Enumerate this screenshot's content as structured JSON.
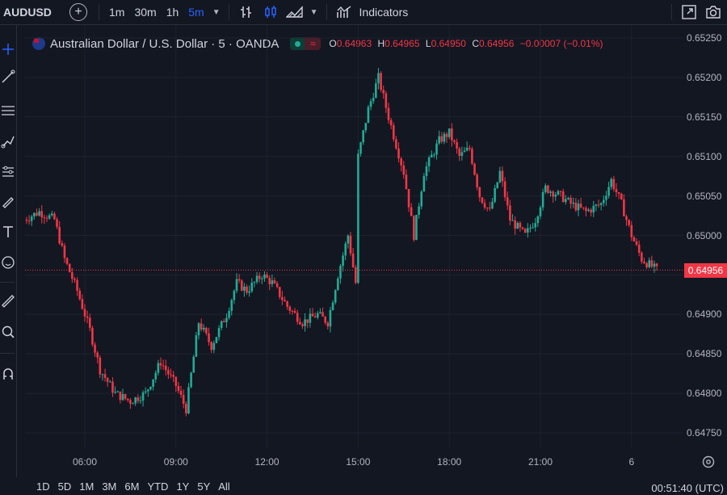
{
  "topbar": {
    "symbol": "AUDUSD",
    "timeframes": [
      "1m",
      "30m",
      "1h",
      "5m"
    ],
    "active_timeframe": "5m",
    "indicators_label": "Indicators",
    "icons": [
      "add-symbol-icon",
      "bar-style-icon",
      "candles-icon",
      "area-chart-icon",
      "indicators-icon",
      "fullscreen-icon",
      "snapshot-icon"
    ]
  },
  "legend": {
    "title": "Australian Dollar / U.S. Dollar · 5 · OANDA",
    "o_key": "O",
    "o_val": "0.64963",
    "h_key": "H",
    "h_val": "0.64965",
    "l_key": "L",
    "l_val": "0.64950",
    "c_key": "C",
    "c_val": "0.64956",
    "change": "−0.00007 (−0.01%)",
    "market_status": "≈"
  },
  "price_axis": {
    "labels": [
      "0.65250",
      "0.65200",
      "0.65150",
      "0.65100",
      "0.65050",
      "0.65000",
      "0.64950",
      "0.64900",
      "0.64850",
      "0.64800",
      "0.64750"
    ],
    "last_price": "0.64956"
  },
  "time_axis": {
    "labels": [
      "06:00",
      "09:00",
      "12:00",
      "15:00",
      "18:00",
      "21:00",
      "6"
    ]
  },
  "bottombar": {
    "ranges": [
      "1D",
      "5D",
      "1M",
      "3M",
      "6M",
      "YTD",
      "1Y",
      "5Y",
      "All"
    ],
    "clock": "00:51:40 (UTC)"
  },
  "colors": {
    "up": "#22ab94",
    "down": "#f23645",
    "background": "#131722",
    "grid": "#1e222d",
    "accent": "#2962ff"
  },
  "chart_data": {
    "type": "candlestick",
    "symbol": "AUDUSD",
    "interval": "5m",
    "ylim": [
      0.6474,
      0.6526
    ],
    "x_ticks": [
      "06:00",
      "09:00",
      "12:00",
      "15:00",
      "18:00",
      "21:00",
      "6"
    ],
    "close_path": [
      [
        "04:00",
        0.6502
      ],
      [
        "04:30",
        0.6503
      ],
      [
        "05:00",
        0.6502
      ],
      [
        "05:20",
        0.6497
      ],
      [
        "05:45",
        0.6493
      ],
      [
        "06:10",
        0.6488
      ],
      [
        "06:30",
        0.6483
      ],
      [
        "07:00",
        0.648
      ],
      [
        "07:30",
        0.6479
      ],
      [
        "08:00",
        0.648
      ],
      [
        "08:30",
        0.6484
      ],
      [
        "09:00",
        0.6481
      ],
      [
        "09:20",
        0.6478
      ],
      [
        "09:45",
        0.6489
      ],
      [
        "10:10",
        0.6486
      ],
      [
        "10:40",
        0.649
      ],
      [
        "11:00",
        0.6494
      ],
      [
        "11:20",
        0.6493
      ],
      [
        "11:50",
        0.6495
      ],
      [
        "12:10",
        0.6494
      ],
      [
        "12:40",
        0.6491
      ],
      [
        "13:10",
        0.6489
      ],
      [
        "13:40",
        0.649
      ],
      [
        "14:00",
        0.6489
      ],
      [
        "14:20",
        0.6495
      ],
      [
        "14:40",
        0.65
      ],
      [
        "14:55",
        0.6494
      ],
      [
        "15:00",
        0.651
      ],
      [
        "15:20",
        0.6516
      ],
      [
        "15:40",
        0.652
      ],
      [
        "16:00",
        0.6515
      ],
      [
        "16:30",
        0.6508
      ],
      [
        "16:50",
        0.65
      ],
      [
        "17:10",
        0.6508
      ],
      [
        "17:40",
        0.6512
      ],
      [
        "18:00",
        0.6513
      ],
      [
        "18:20",
        0.651
      ],
      [
        "18:40",
        0.6511
      ],
      [
        "19:00",
        0.6505
      ],
      [
        "19:20",
        0.6503
      ],
      [
        "19:40",
        0.6508
      ],
      [
        "20:00",
        0.6502
      ],
      [
        "20:30",
        0.65
      ],
      [
        "20:50",
        0.6502
      ],
      [
        "21:10",
        0.6506
      ],
      [
        "21:40",
        0.6505
      ],
      [
        "22:00",
        0.6504
      ],
      [
        "22:30",
        0.6503
      ],
      [
        "23:00",
        0.6504
      ],
      [
        "23:20",
        0.6507
      ],
      [
        "23:40",
        0.6504
      ],
      [
        "00:00",
        0.65
      ],
      [
        "00:20",
        0.6497
      ],
      [
        "00:50",
        0.64956
      ]
    ],
    "last": 0.64956,
    "open": 0.64963,
    "high": 0.64965,
    "low": 0.6495,
    "close": 0.64956
  }
}
